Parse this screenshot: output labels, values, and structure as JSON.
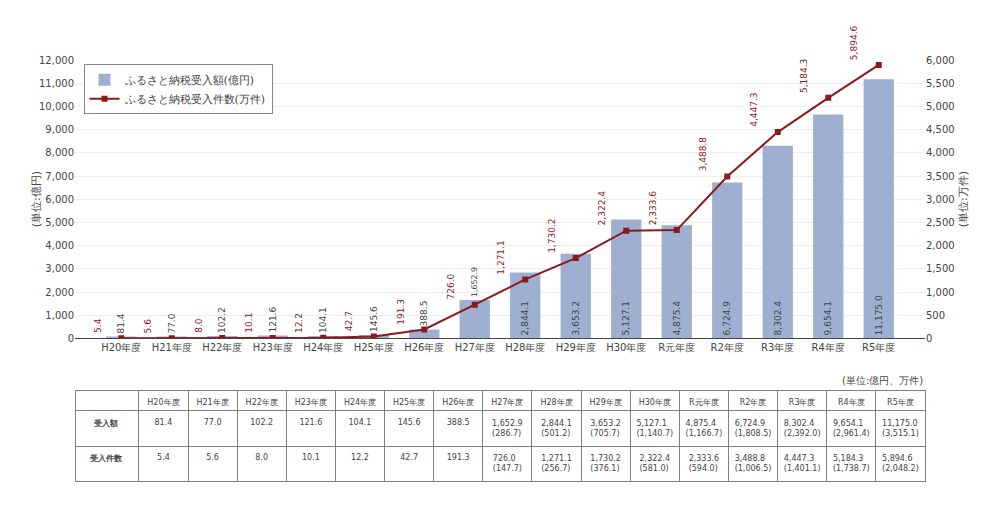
{
  "chart_data": [
    {
      "type": "bar",
      "categories": [
        "H20年度",
        "H21年度",
        "H22年度",
        "H23年度",
        "H24年度",
        "H25年度",
        "H26年度",
        "H27年度",
        "H28年度",
        "H29年度",
        "H30年度",
        "R元年度",
        "R2年度",
        "R3年度",
        "R4年度",
        "R5年度"
      ],
      "series": [
        {
          "name": "ふるさと納税受入額(億円)",
          "type": "bar",
          "color": "#9fafd1",
          "values": [
            81.4,
            77.0,
            102.2,
            121.6,
            104.1,
            145.6,
            388.5,
            1652.9,
            2844.1,
            3653.2,
            5127.1,
            4875.4,
            6724.9,
            8302.4,
            9654.1,
            11175.0
          ],
          "value_labels": [
            "81.4",
            "77.0",
            "102.2",
            "121.6",
            "104.1",
            "145.6",
            "388.5",
            "1,652.9",
            "2,844.1",
            "3,653.2",
            "5,127.1",
            "4,875.4",
            "6,724.9",
            "8,302.4",
            "9,654.1",
            "11,175.0"
          ]
        },
        {
          "name": "ふるさと納税受入件数(万件)",
          "type": "line",
          "color": "#8b1a1a",
          "marker": "square",
          "axis": "y2",
          "values": [
            5.4,
            5.6,
            8.0,
            10.1,
            12.2,
            42.7,
            191.3,
            726.0,
            1271.1,
            1730.2,
            2322.4,
            2333.6,
            3488.8,
            4447.3,
            5184.3,
            5894.6
          ],
          "value_labels": [
            "5.4",
            "5.6",
            "8.0",
            "10.1",
            "12.2",
            "42.7",
            "191.3",
            "726.0",
            "1,271.1",
            "1,730.2",
            "2,322.4",
            "2,333.6",
            "3,488.8",
            "4,447.3",
            "5,184.3",
            "5,894.6"
          ]
        }
      ],
      "ylabel": "(単位:億円)",
      "y2label": "(単位:万件)",
      "ylim": [
        0,
        12000
      ],
      "yticks": [
        0,
        {
          "value": 1000,
          "label": "1,000"
        },
        {
          "value": 2000,
          "label": "2,000"
        },
        {
          "value": 3000,
          "label": "3,000"
        },
        {
          "value": 4000,
          "label": "4,000"
        },
        {
          "value": 5000,
          "label": "5,000"
        },
        {
          "value": 6000,
          "label": "6,000"
        },
        {
          "value": 7000,
          "label": "7,000"
        },
        {
          "value": 8000,
          "label": "8,000"
        },
        {
          "value": 9000,
          "label": "9,000"
        },
        {
          "value": 10000,
          "label": "10,000"
        },
        {
          "value": 11000,
          "label": "11,000"
        },
        {
          "value": 12000,
          "label": "12,000"
        }
      ],
      "y2lim": [
        0,
        6000
      ],
      "y2ticks": [
        0,
        500,
        {
          "value": 1000,
          "label": "1,000"
        },
        {
          "value": 1500,
          "label": "1,500"
        },
        {
          "value": 2000,
          "label": "2,000"
        },
        {
          "value": 2500,
          "label": "2,500"
        },
        {
          "value": 3000,
          "label": "3,000"
        },
        {
          "value": 3500,
          "label": "3,500"
        },
        {
          "value": 4000,
          "label": "4,000"
        },
        {
          "value": 4500,
          "label": "4,500"
        },
        {
          "value": 5000,
          "label": "5,000"
        },
        {
          "value": 5500,
          "label": "5,500"
        },
        {
          "value": 6000,
          "label": "6,000"
        }
      ],
      "grid": true,
      "legend": "upper left",
      "data_labels": true
    },
    {
      "type": "table",
      "title": "(単位:億円、万件)",
      "categories": [
        "H20年度",
        "H21年度",
        "H22年度",
        "H23年度",
        "H24年度",
        "H25年度",
        "H26年度",
        "H27年度",
        "H28年度",
        "H29年度",
        "H30年度",
        "R元年度",
        "R2年度",
        "R3年度",
        "R4年度",
        "R5年度"
      ],
      "rows": [
        {
          "name": "受入額",
          "values": [
            "81.4",
            "77.0",
            "102.2",
            "121.6",
            "104.1",
            "145.6",
            "388.5",
            "1,652.9\n(286.7)",
            "2,844.1\n(501.2)",
            "3,653.2\n(705.7)",
            "5,127.1\n(1,140.7)",
            "4,875.4\n(1,166.7)",
            "6,724.9\n(1,808.5)",
            "8,302.4\n(2,392.0)",
            "9,654.1\n(2,961.4)",
            "11,175.0\n(3,515.1)"
          ]
        },
        {
          "name": "受入件数",
          "values": [
            "5.4",
            "5.6",
            "8.0",
            "10.1",
            "12.2",
            "42.7",
            "191.3",
            "726.0\n(147.7)",
            "1,271.1\n(256.7)",
            "1,730.2\n(376.1)",
            "2,322.4\n(581.0)",
            "2,333.6\n(594.0)",
            "3,488.8\n(1,006.5)",
            "4,447.3\n(1,401.1)",
            "5,184.3\n(1,738.7)",
            "5,894.6\n(2,048.2)"
          ]
        }
      ]
    }
  ]
}
